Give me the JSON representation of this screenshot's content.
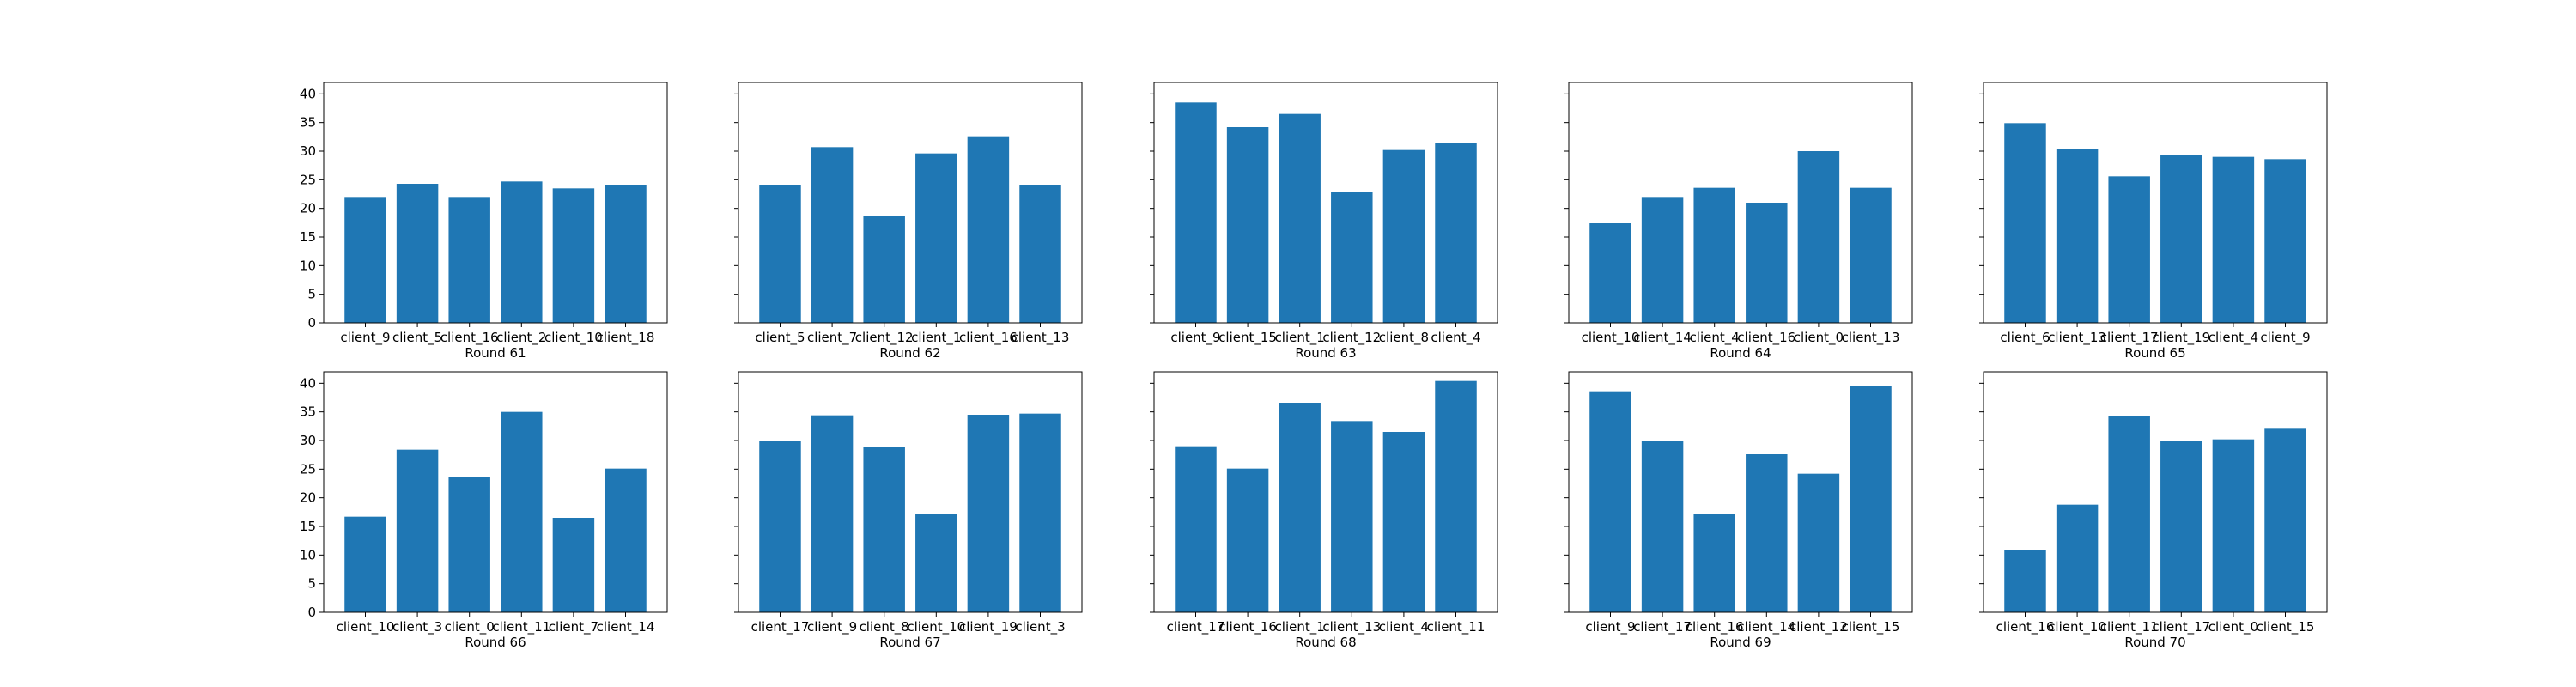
{
  "chart_data": [
    {
      "type": "bar",
      "xlabel": "Round 61",
      "categories": [
        "client_9",
        "client_5",
        "client_16",
        "client_2",
        "client_10",
        "client_18"
      ],
      "values": [
        22.0,
        24.3,
        22.0,
        24.7,
        23.5,
        24.1
      ],
      "ylim": [
        0,
        42
      ],
      "yticks": [
        0,
        5,
        10,
        15,
        20,
        25,
        30,
        35,
        40
      ],
      "color": "#1f77b4"
    },
    {
      "type": "bar",
      "xlabel": "Round 62",
      "categories": [
        "client_5",
        "client_7",
        "client_12",
        "client_1",
        "client_16",
        "client_13"
      ],
      "values": [
        24.0,
        30.7,
        18.7,
        29.6,
        32.6,
        24.0
      ],
      "ylim": [
        0,
        42
      ],
      "yticks": [
        0,
        5,
        10,
        15,
        20,
        25,
        30,
        35,
        40
      ],
      "color": "#1f77b4"
    },
    {
      "type": "bar",
      "xlabel": "Round 63",
      "categories": [
        "client_9",
        "client_15",
        "client_1",
        "client_12",
        "client_8",
        "client_4"
      ],
      "values": [
        38.5,
        34.2,
        36.5,
        22.8,
        30.2,
        31.4
      ],
      "ylim": [
        0,
        42
      ],
      "yticks": [
        0,
        5,
        10,
        15,
        20,
        25,
        30,
        35,
        40
      ],
      "color": "#1f77b4"
    },
    {
      "type": "bar",
      "xlabel": "Round 64",
      "categories": [
        "client_10",
        "client_14",
        "client_4",
        "client_16",
        "client_0",
        "client_13"
      ],
      "values": [
        17.4,
        22.0,
        23.6,
        21.0,
        30.0,
        23.6
      ],
      "ylim": [
        0,
        42
      ],
      "yticks": [
        0,
        5,
        10,
        15,
        20,
        25,
        30,
        35,
        40
      ],
      "color": "#1f77b4"
    },
    {
      "type": "bar",
      "xlabel": "Round 65",
      "categories": [
        "client_6",
        "client_13",
        "client_17",
        "client_19",
        "client_4",
        "client_9"
      ],
      "values": [
        34.9,
        30.4,
        25.6,
        29.3,
        29.0,
        28.6
      ],
      "ylim": [
        0,
        42
      ],
      "yticks": [
        0,
        5,
        10,
        15,
        20,
        25,
        30,
        35,
        40
      ],
      "color": "#1f77b4"
    },
    {
      "type": "bar",
      "xlabel": "Round 66",
      "categories": [
        "client_10",
        "client_3",
        "client_0",
        "client_11",
        "client_7",
        "client_14"
      ],
      "values": [
        16.7,
        28.4,
        23.6,
        35.0,
        16.5,
        25.1
      ],
      "ylim": [
        0,
        42
      ],
      "yticks": [
        0,
        5,
        10,
        15,
        20,
        25,
        30,
        35,
        40
      ],
      "color": "#1f77b4"
    },
    {
      "type": "bar",
      "xlabel": "Round 67",
      "categories": [
        "client_17",
        "client_9",
        "client_8",
        "client_10",
        "client_19",
        "client_3"
      ],
      "values": [
        29.9,
        34.4,
        28.8,
        17.2,
        34.5,
        34.7
      ],
      "ylim": [
        0,
        42
      ],
      "yticks": [
        0,
        5,
        10,
        15,
        20,
        25,
        30,
        35,
        40
      ],
      "color": "#1f77b4"
    },
    {
      "type": "bar",
      "xlabel": "Round 68",
      "categories": [
        "client_17",
        "client_16",
        "client_1",
        "client_13",
        "client_4",
        "client_11"
      ],
      "values": [
        29.0,
        25.1,
        36.6,
        33.4,
        31.5,
        40.4
      ],
      "ylim": [
        0,
        42
      ],
      "yticks": [
        0,
        5,
        10,
        15,
        20,
        25,
        30,
        35,
        40
      ],
      "color": "#1f77b4"
    },
    {
      "type": "bar",
      "xlabel": "Round 69",
      "categories": [
        "client_9",
        "client_17",
        "client_16",
        "client_14",
        "client_12",
        "client_15"
      ],
      "values": [
        38.6,
        30.0,
        17.2,
        27.6,
        24.2,
        39.5
      ],
      "ylim": [
        0,
        42
      ],
      "yticks": [
        0,
        5,
        10,
        15,
        20,
        25,
        30,
        35,
        40
      ],
      "color": "#1f77b4"
    },
    {
      "type": "bar",
      "xlabel": "Round 70",
      "categories": [
        "client_16",
        "client_10",
        "client_11",
        "client_17",
        "client_0",
        "client_15"
      ],
      "values": [
        10.9,
        18.8,
        34.3,
        29.9,
        30.2,
        32.2
      ],
      "ylim": [
        0,
        42
      ],
      "yticks": [
        0,
        5,
        10,
        15,
        20,
        25,
        30,
        35,
        40
      ],
      "color": "#1f77b4"
    }
  ]
}
